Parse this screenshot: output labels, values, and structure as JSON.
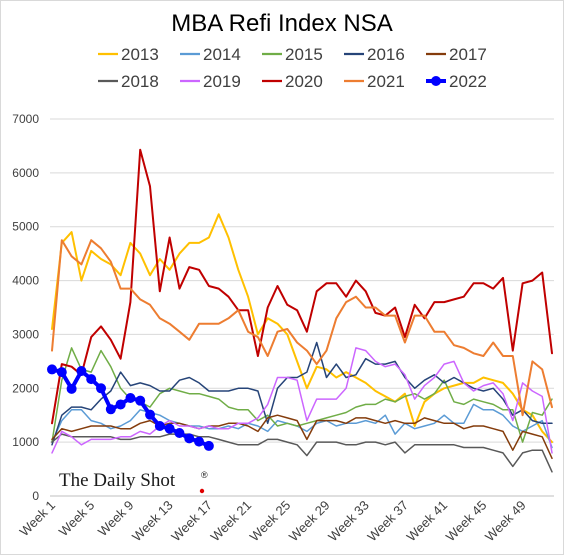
{
  "chart_data": {
    "type": "line",
    "title": "MBA Refi Index NSA",
    "watermark": "The Daily Shot",
    "watermark_mark": "®",
    "ylim": [
      0,
      7000
    ],
    "yticks": [
      0,
      1000,
      2000,
      3000,
      4000,
      5000,
      6000,
      7000
    ],
    "xticks": [
      "Week 1",
      "Week 5",
      "Week 9",
      "Week 13",
      "Week 17",
      "Week 21",
      "Week 25",
      "Week 29",
      "Week 33",
      "Week 37",
      "Week 41",
      "Week 45",
      "Week 49"
    ],
    "grid": "horizontal",
    "legend_position": "top",
    "weeks": 52,
    "series": [
      {
        "name": "2013",
        "color": "#FFC000",
        "width": 2,
        "values": [
          3100,
          4700,
          4900,
          4000,
          4550,
          4400,
          4300,
          4100,
          4700,
          4500,
          4100,
          4400,
          4200,
          4500,
          4700,
          4700,
          4800,
          5230,
          4800,
          4200,
          3700,
          3000,
          3300,
          3200,
          3000,
          2500,
          2000,
          2400,
          2350,
          2200,
          2300,
          2200,
          2100,
          1950,
          1850,
          1750,
          1900,
          1300,
          1750,
          1900,
          2000,
          2050,
          2100,
          2100,
          2200,
          2150,
          2100,
          1900,
          1600,
          1500,
          1200,
          1000
        ]
      },
      {
        "name": "2014",
        "color": "#5B9BD5",
        "width": 1.5,
        "values": [
          1000,
          1400,
          1600,
          1600,
          1400,
          1350,
          1250,
          1300,
          1400,
          1600,
          1550,
          1500,
          1400,
          1350,
          1300,
          1300,
          1250,
          1250,
          1300,
          1250,
          1350,
          1300,
          1200,
          1400,
          1350,
          1300,
          1200,
          1350,
          1400,
          1300,
          1350,
          1350,
          1400,
          1350,
          1500,
          1150,
          1350,
          1250,
          1300,
          1350,
          1500,
          1350,
          1350,
          1700,
          1600,
          1600,
          1500,
          1300,
          1200,
          1300,
          1400,
          900
        ]
      },
      {
        "name": "2015",
        "color": "#70AD47",
        "width": 1.5,
        "values": [
          1000,
          2150,
          2750,
          2350,
          2300,
          2700,
          2400,
          2000,
          1800,
          1750,
          1650,
          1900,
          2000,
          1950,
          1900,
          1900,
          1850,
          1800,
          1650,
          1600,
          1600,
          1400,
          1500,
          1300,
          1350,
          1300,
          1350,
          1400,
          1450,
          1500,
          1550,
          1650,
          1700,
          1700,
          1800,
          1750,
          1850,
          1900,
          1800,
          1900,
          2150,
          1750,
          1700,
          1800,
          1750,
          1700,
          1600,
          1600,
          1000,
          1550,
          1500,
          1800
        ]
      },
      {
        "name": "2016",
        "color": "#264478",
        "width": 1.5,
        "values": [
          950,
          1500,
          1650,
          1650,
          1600,
          1800,
          1950,
          2300,
          2050,
          2100,
          2050,
          1950,
          1950,
          2150,
          2200,
          2100,
          1950,
          1950,
          1950,
          2000,
          2000,
          1950,
          1350,
          2000,
          2200,
          2200,
          2300,
          2850,
          2200,
          2450,
          2200,
          2250,
          2550,
          2450,
          2450,
          2500,
          2200,
          2000,
          2150,
          2250,
          2100,
          2200,
          2100,
          2000,
          1950,
          2000,
          1800,
          1500,
          1600,
          1400,
          1350,
          1350
        ]
      },
      {
        "name": "2017",
        "color": "#843C0C",
        "width": 1.5,
        "values": [
          1050,
          1250,
          1200,
          1250,
          1300,
          1300,
          1300,
          1250,
          1250,
          1350,
          1400,
          1300,
          1350,
          1350,
          1300,
          1250,
          1300,
          1300,
          1350,
          1350,
          1300,
          1200,
          1450,
          1500,
          1450,
          1400,
          1050,
          1400,
          1400,
          1400,
          1350,
          1450,
          1450,
          1400,
          1350,
          1400,
          1350,
          1350,
          1450,
          1400,
          1350,
          1350,
          1250,
          1300,
          1300,
          1250,
          1200,
          850,
          1200,
          1150,
          1100,
          700
        ]
      },
      {
        "name": "2018",
        "color": "#595959",
        "width": 1.5,
        "values": [
          1000,
          1150,
          1100,
          1100,
          1100,
          1100,
          1100,
          1050,
          1050,
          1100,
          1100,
          1100,
          1150,
          1150,
          1150,
          1100,
          1100,
          1050,
          1000,
          950,
          950,
          950,
          1050,
          1050,
          1000,
          950,
          750,
          1000,
          1000,
          1000,
          950,
          950,
          1000,
          1000,
          950,
          1000,
          800,
          950,
          950,
          950,
          950,
          950,
          900,
          900,
          900,
          850,
          800,
          550,
          800,
          850,
          850,
          450
        ]
      },
      {
        "name": "2019",
        "color": "#CC66FF",
        "width": 1.5,
        "values": [
          800,
          1200,
          1100,
          950,
          1050,
          1050,
          1050,
          1100,
          1100,
          1200,
          1150,
          1300,
          1400,
          1300,
          1300,
          1250,
          1300,
          1250,
          1250,
          1350,
          1350,
          1450,
          1700,
          2200,
          2200,
          2150,
          1400,
          1800,
          1800,
          1800,
          2000,
          2750,
          2700,
          2500,
          2400,
          2450,
          2250,
          1800,
          2050,
          2200,
          2450,
          2500,
          2100,
          1950,
          2050,
          2100,
          1900,
          1400,
          2100,
          1950,
          1850,
          800
        ]
      },
      {
        "name": "2020",
        "color": "#C00000",
        "width": 2,
        "values": [
          1350,
          2450,
          2400,
          2250,
          2950,
          3150,
          2900,
          2550,
          3600,
          6430,
          5750,
          3800,
          4800,
          3850,
          4250,
          4200,
          3900,
          3850,
          3700,
          3450,
          3450,
          2600,
          3500,
          3900,
          3550,
          3450,
          3050,
          3800,
          3950,
          3950,
          3700,
          4000,
          3800,
          3400,
          3350,
          3500,
          2950,
          3550,
          3300,
          3600,
          3600,
          3650,
          3700,
          3950,
          3950,
          3850,
          4050,
          2700,
          3950,
          4000,
          4150,
          2650
        ]
      },
      {
        "name": "2021",
        "color": "#ED7D31",
        "width": 2,
        "values": [
          2700,
          4750,
          4450,
          4300,
          4750,
          4600,
          4350,
          3850,
          3850,
          3650,
          3550,
          3300,
          3200,
          3050,
          2900,
          3200,
          3200,
          3200,
          3300,
          3450,
          3050,
          2950,
          2600,
          3050,
          3100,
          2850,
          2700,
          2450,
          2700,
          3300,
          3600,
          3700,
          3500,
          3500,
          3350,
          3350,
          2850,
          3350,
          3350,
          3050,
          3050,
          2800,
          2750,
          2650,
          2600,
          2850,
          2600,
          2600,
          1500,
          2500,
          2350,
          1650
        ]
      },
      {
        "name": "2022",
        "color": "#0000FF",
        "width": 4,
        "marker": true,
        "values": [
          2350,
          2300,
          1990,
          2320,
          2170,
          2000,
          1610,
          1700,
          1820,
          1770,
          1510,
          1300,
          1250,
          1170,
          1070,
          1010,
          930
        ]
      }
    ]
  }
}
